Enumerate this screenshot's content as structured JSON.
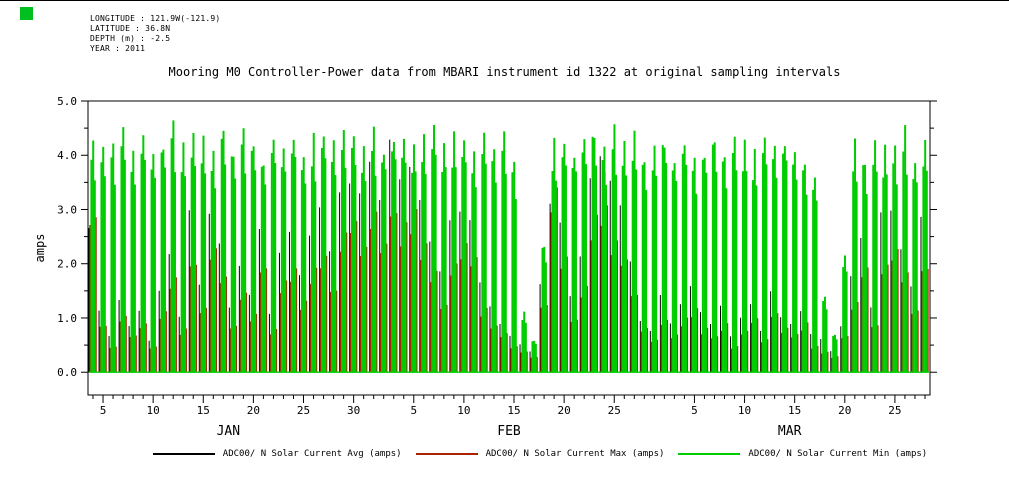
{
  "header": {
    "longitude": "LONGITUDE : 121.9W(-121.9)",
    "latitude": "LATITUDE : 36.8N",
    "depth": "DEPTH (m) : -2.5",
    "year": "YEAR : 2011"
  },
  "colors": {
    "corner_square": "#00c020",
    "axis": "#000000",
    "background": "#ffffff"
  },
  "chart_data": {
    "type": "line",
    "title": "Mooring M0 Controller-Power data from MBARI instrument id 1322 at original sampling intervals",
    "xlabel": "",
    "ylabel": "amps",
    "ylim": [
      -0.42,
      5.0
    ],
    "y_ticks": [
      0.0,
      1.0,
      2.0,
      3.0,
      4.0,
      5.0
    ],
    "y_tick_labels": [
      "0.0",
      "1.0",
      "2.0",
      "3.0",
      "4.0",
      "5.0"
    ],
    "grid": false,
    "legend_position": "bottom",
    "x_axis": {
      "start_label": "JAN 4 2011",
      "months": [
        {
          "label": "JAN",
          "first_day": 4,
          "last_day": 31,
          "tick_days": [
            5,
            10,
            15,
            20,
            25,
            30
          ]
        },
        {
          "label": "FEB",
          "first_day": 1,
          "last_day": 28,
          "tick_days": [
            5,
            10,
            15,
            20,
            25
          ]
        },
        {
          "label": "MAR",
          "first_day": 1,
          "last_day": 28,
          "tick_days": [
            5,
            10,
            15,
            20,
            25
          ]
        }
      ]
    },
    "baseline": 0.0,
    "series": [
      {
        "name": "ADC00/ N Solar Current Avg (amps)",
        "color": "#000000",
        "daily_peaks": [
          2.6,
          1.1,
          0.7,
          1.4,
          0.9,
          1.2,
          0.6,
          1.5,
          2.3,
          1.0,
          2.9,
          1.6,
          3.1,
          2.4,
          1.2,
          2.0,
          1.5,
          2.7,
          1.1,
          2.3,
          2.6,
          1.8,
          2.5,
          3.0,
          2.2,
          3.4,
          3.7,
          3.2,
          3.9,
          3.3,
          4.2,
          3.6,
          4.0,
          3.1,
          2.4,
          1.8,
          2.7,
          3.1,
          2.8,
          1.6,
          1.2,
          0.9,
          0.7,
          0.5,
          0.4,
          1.7,
          3.3,
          2.9,
          1.4,
          2.2,
          3.7,
          4.0,
          3.4,
          3.0,
          2.1,
          1.0,
          0.8,
          1.4,
          0.9,
          1.3,
          1.6,
          1.1,
          0.9,
          1.2,
          0.7,
          1.0,
          1.3,
          0.8,
          1.5,
          1.0,
          0.9,
          1.1,
          0.7,
          0.6,
          0.4,
          0.9,
          1.8,
          2.6,
          1.2,
          2.9,
          3.1,
          2.4,
          1.6,
          2.8
        ]
      },
      {
        "name": "ADC00/ N Solar Current Max (amps)",
        "color": "#aa2200",
        "daily_peaks": [
          3.0,
          0.9,
          0.5,
          1.1,
          0.7,
          0.9,
          0.5,
          1.1,
          1.7,
          0.8,
          2.1,
          1.2,
          2.3,
          1.8,
          0.9,
          1.5,
          1.1,
          2.0,
          0.8,
          1.7,
          1.9,
          1.3,
          1.9,
          2.2,
          1.6,
          2.5,
          2.8,
          2.4,
          2.9,
          2.4,
          3.1,
          2.7,
          3.0,
          2.3,
          1.8,
          1.3,
          2.0,
          2.3,
          2.1,
          1.2,
          0.9,
          0.7,
          0.5,
          0.4,
          0.3,
          1.3,
          3.4,
          2.2,
          1.0,
          1.6,
          2.8,
          3.0,
          2.5,
          2.2,
          1.5,
          0.8,
          0.6,
          1.0,
          0.7,
          1.0,
          1.2,
          0.8,
          0.7,
          0.9,
          0.5,
          0.8,
          1.0,
          0.6,
          1.1,
          0.8,
          0.7,
          0.9,
          0.5,
          0.4,
          0.3,
          0.7,
          1.3,
          1.9,
          0.9,
          2.1,
          2.3,
          1.8,
          1.2,
          2.0
        ]
      },
      {
        "name": "ADC00/ N Solar Current Min (amps)",
        "color": "#00cc00",
        "daily_peaks": [
          4.3,
          4.4,
          4.1,
          4.5,
          4.2,
          4.4,
          4.0,
          4.3,
          4.5,
          4.2,
          4.4,
          4.3,
          4.1,
          4.5,
          4.2,
          4.4,
          4.3,
          4.0,
          4.4,
          4.2,
          4.5,
          4.1,
          4.3,
          4.4,
          4.2,
          4.5,
          4.3,
          4.1,
          4.4,
          4.2,
          4.5,
          4.3,
          4.1,
          4.4,
          4.6,
          4.2,
          4.3,
          4.5,
          4.1,
          4.3,
          4.2,
          4.4,
          3.9,
          1.1,
          0.6,
          2.4,
          4.2,
          4.4,
          4.1,
          4.3,
          4.5,
          4.2,
          4.4,
          4.1,
          4.3,
          4.0,
          4.2,
          4.4,
          4.1,
          4.3,
          4.0,
          4.2,
          4.4,
          4.1,
          4.3,
          4.2,
          4.0,
          4.3,
          4.1,
          4.4,
          4.2,
          4.0,
          3.7,
          1.4,
          0.7,
          2.1,
          4.2,
          4.0,
          4.3,
          4.1,
          4.2,
          4.4,
          4.0,
          4.2
        ]
      }
    ]
  }
}
